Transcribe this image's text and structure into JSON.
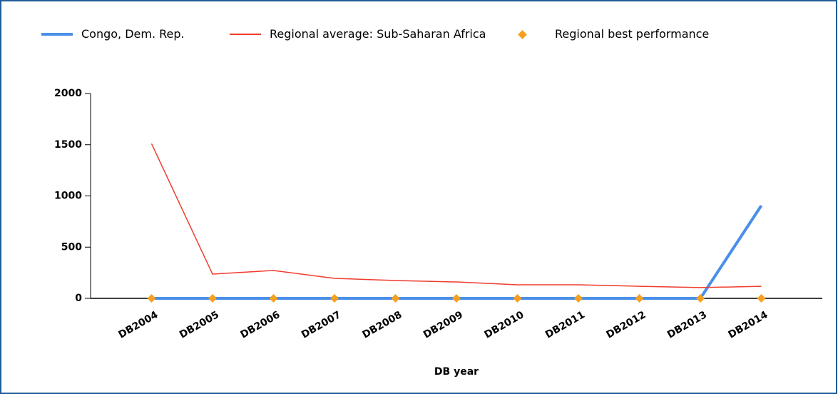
{
  "chart_data": {
    "type": "line",
    "x_label": "DB year",
    "categories": [
      "DB2004",
      "DB2005",
      "DB2006",
      "DB2007",
      "DB2008",
      "DB2009",
      "DB2010",
      "DB2011",
      "DB2012",
      "DB2013",
      "DB2014"
    ],
    "series": [
      {
        "name": "Congo, Dem. Rep.",
        "color": "#4a8fe8",
        "style": "thick",
        "values": [
          0,
          0,
          0,
          0,
          0,
          0,
          0,
          0,
          0,
          0,
          906
        ]
      },
      {
        "name": "Regional average: Sub-Saharan Africa",
        "color": "#f03c2e",
        "style": "thin",
        "values": [
          1510,
          237,
          272,
          195,
          174,
          160,
          132,
          132,
          118,
          105,
          118
        ]
      },
      {
        "name": "Regional best performance",
        "color": "#f5a020",
        "style": "markers",
        "values": [
          0,
          0,
          0,
          0,
          0,
          0,
          0,
          0,
          0,
          0,
          0
        ]
      }
    ],
    "ylim": [
      0,
      2000
    ],
    "yticks": [
      0,
      500,
      1000,
      1500,
      2000
    ],
    "legend": "top"
  }
}
